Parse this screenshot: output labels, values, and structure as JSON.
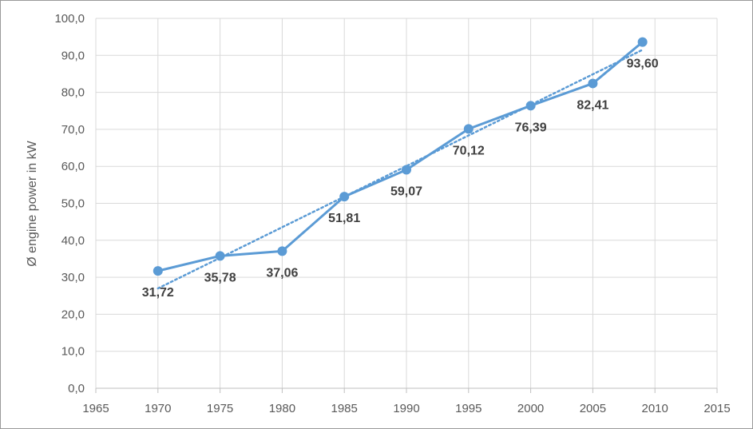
{
  "chart_data": {
    "type": "line",
    "title": "",
    "xlabel": "",
    "ylabel": "Ø engine power in kW",
    "xlim": [
      1965,
      2015
    ],
    "ylim": [
      0,
      100
    ],
    "x_ticks": [
      "1965",
      "1970",
      "1975",
      "1980",
      "1985",
      "1990",
      "1995",
      "2000",
      "2005",
      "2010",
      "2015"
    ],
    "y_ticks": [
      "0,0",
      "10,0",
      "20,0",
      "30,0",
      "40,0",
      "50,0",
      "60,0",
      "70,0",
      "80,0",
      "90,0",
      "100,0"
    ],
    "grid": true,
    "legend": "none",
    "series": [
      {
        "x": [
          1970,
          1975,
          1980,
          1985,
          1990,
          1995,
          2000,
          2005,
          2009
        ],
        "y": [
          31.72,
          35.78,
          37.06,
          51.81,
          59.07,
          70.12,
          76.39,
          82.41,
          93.6
        ],
        "labels": [
          "31,72",
          "35,78",
          "37,06",
          "51,81",
          "59,07",
          "70,12",
          "76,39",
          "82,41",
          "93,60"
        ],
        "color": "#5b9bd5"
      }
    ],
    "trendline": {
      "type": "linear",
      "style": "dotted",
      "color": "#5b9bd5",
      "x": [
        1970,
        2009
      ],
      "y": [
        27.0,
        91.5
      ]
    }
  }
}
